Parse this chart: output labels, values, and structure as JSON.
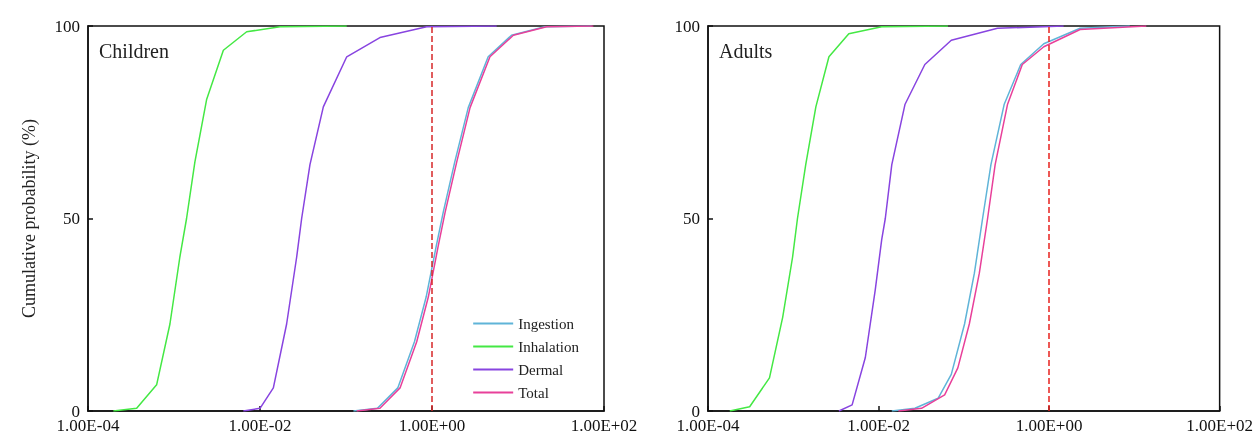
{
  "chart_data": [
    {
      "type": "line",
      "title": "Children",
      "ylabel": "Cumulative probability (%)",
      "log": "x",
      "xlim": [
        0.0001,
        100
      ],
      "ylim": [
        0,
        100
      ],
      "xticks": [
        {
          "value": 0.0001,
          "label": "1.00E-04"
        },
        {
          "value": 0.01,
          "label": "1.00E-02"
        },
        {
          "value": 1,
          "label": "1.00E+00"
        },
        {
          "value": 100,
          "label": "1.00E+02"
        }
      ],
      "yticks": [
        0,
        50,
        100
      ],
      "grid": false,
      "legend": "bottom right",
      "ref_lines": [
        {
          "axis": "x",
          "value": 1,
          "color": "#d62728",
          "line_style": "dashed"
        }
      ],
      "series": [
        {
          "name": "Ingestion",
          "color": "#5fb4d8",
          "x": [
            0.122,
            0.232,
            0.4,
            0.625,
            0.855,
            1.12,
            1.35,
            1.84,
            2.64,
            4.5,
            8.4,
            20.5,
            72.0
          ],
          "values": [
            0,
            0.7,
            6,
            18,
            29.6,
            42.8,
            51.6,
            64.7,
            78.8,
            92,
            97.6,
            99.8,
            100
          ]
        },
        {
          "name": "Inhalation",
          "color": "#44e844",
          "x": [
            0.000197,
            0.000368,
            0.000628,
            0.000897,
            0.00117,
            0.0014,
            0.00175,
            0.0024,
            0.00375,
            0.007,
            0.0171,
            0.102
          ],
          "values": [
            0,
            0.7,
            6.8,
            22.6,
            40,
            50,
            64.7,
            81,
            93.7,
            98.5,
            99.8,
            100
          ]
        },
        {
          "name": "Dermal",
          "color": "#8844e0",
          "x": [
            0.0064,
            0.01,
            0.0143,
            0.0204,
            0.0267,
            0.0305,
            0.0381,
            0.0545,
            0.102,
            0.248,
            0.867,
            5.65
          ],
          "values": [
            0,
            0.7,
            6,
            22.6,
            40,
            50,
            64,
            79,
            92,
            97,
            99.8,
            100
          ]
        },
        {
          "name": "Total",
          "color": "#e8409a",
          "x": [
            0.133,
            0.248,
            0.425,
            0.664,
            0.906,
            1.18,
            1.42,
            1.94,
            2.77,
            4.72,
            8.83,
            21.5,
            75.2
          ],
          "values": [
            0,
            0.7,
            6,
            18,
            29.6,
            42.8,
            51.6,
            64.7,
            78.8,
            92,
            97.6,
            99.8,
            100
          ]
        }
      ]
    },
    {
      "type": "line",
      "title": "Adults",
      "log": "x",
      "xlim": [
        0.0001,
        100
      ],
      "ylim": [
        0,
        100
      ],
      "xticks": [
        {
          "value": 0.0001,
          "label": "1.00E-04"
        },
        {
          "value": 0.01,
          "label": "1.00E-02"
        },
        {
          "value": 1,
          "label": "1.00E+00"
        },
        {
          "value": 100,
          "label": "1.00E+02"
        }
      ],
      "yticks": [
        0,
        50,
        100
      ],
      "grid": false,
      "ref_lines": [
        {
          "axis": "x",
          "value": 1,
          "color": "#e8221e",
          "line_style": "dashed"
        }
      ],
      "series": [
        {
          "color": "#5fb4d8",
          "x": [
            0.0143,
            0.0267,
            0.0499,
            0.0713,
            0.102,
            0.133,
            0.166,
            0.208,
            0.297,
            0.465,
            0.867,
            2.31,
            8.83
          ],
          "values": [
            0,
            0.7,
            3.3,
            9.5,
            22.6,
            35.8,
            50,
            64,
            79.6,
            90,
            95.4,
            99.4,
            100
          ]
        },
        {
          "color": "#44e844",
          "x": [
            0.00018,
            0.000308,
            0.000526,
            0.000752,
            0.000982,
            0.00112,
            0.0014,
            0.00184,
            0.00262,
            0.00448,
            0.0109,
            0.0652
          ],
          "values": [
            0,
            1.1,
            8.6,
            24.4,
            40,
            50,
            64,
            79,
            92,
            98,
            99.8,
            100
          ]
        },
        {
          "color": "#8844e0",
          "x": [
            0.00343,
            0.0049,
            0.007,
            0.00914,
            0.0109,
            0.012,
            0.0143,
            0.0204,
            0.0349,
            0.0713,
            0.248,
            1.48
          ],
          "values": [
            0,
            1.6,
            13.9,
            31.4,
            44.6,
            50,
            64,
            79.6,
            90,
            96.3,
            99.4,
            100
          ]
        },
        {
          "color": "#e8409a",
          "x": [
            0.0171,
            0.0319,
            0.0596,
            0.0851,
            0.116,
            0.152,
            0.19,
            0.233,
            0.325,
            0.485,
            0.867,
            2.31,
            13.8
          ],
          "values": [
            0,
            0.7,
            4.2,
            11.2,
            22.6,
            35.8,
            50,
            64,
            79.6,
            90,
            94.6,
            99.1,
            100
          ]
        }
      ]
    }
  ]
}
